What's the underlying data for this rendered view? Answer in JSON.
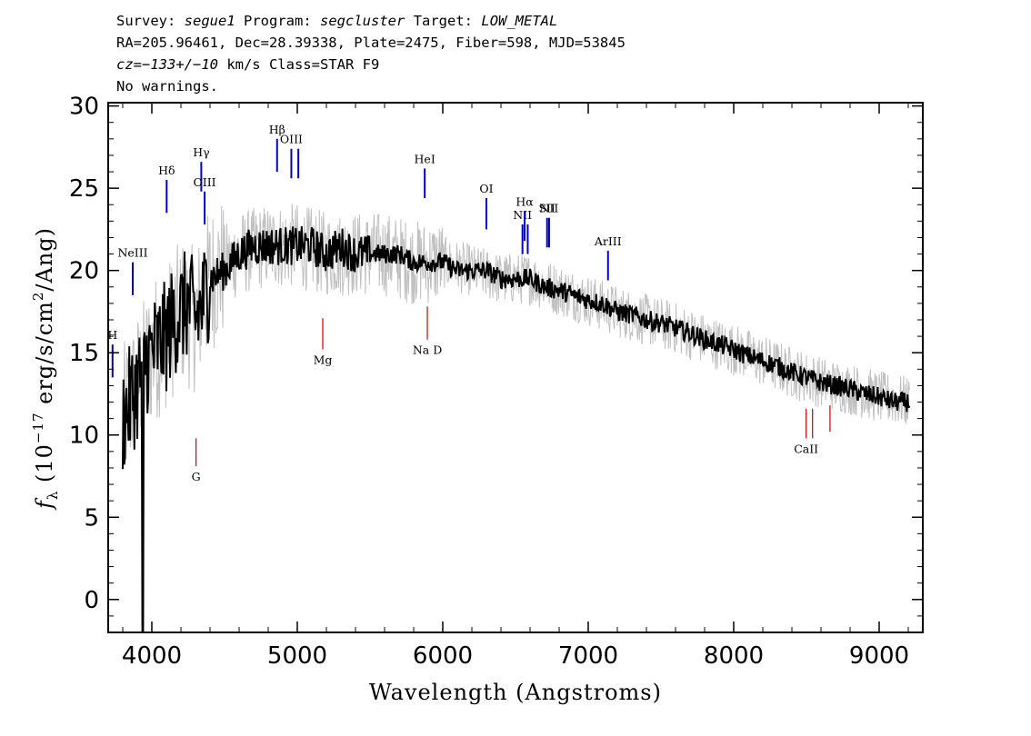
{
  "header": {
    "line1": {
      "survey_label": "Survey:",
      "survey": "segue1",
      "program_label": "Program:",
      "program": "segcluster",
      "target_label": "Target:",
      "target": "LOW_METAL"
    },
    "line2": "RA=205.96461, Dec=28.39338, Plate=2475, Fiber=598, MJD=53845",
    "line3": {
      "cz": "cz=−133+/−10",
      "rest": " km/s Class=STAR F9"
    },
    "line4": "No warnings."
  },
  "chart_data": {
    "type": "line",
    "xlabel": "Wavelength (Angstroms)",
    "ylabel": "f_λ (10^-17 erg/s/cm^2/Ang)",
    "xlim": [
      3700,
      9300
    ],
    "ylim": [
      -2,
      30.2
    ],
    "x_ticks": [
      4000,
      5000,
      6000,
      7000,
      8000,
      9000
    ],
    "y_ticks": [
      0,
      5,
      10,
      15,
      20,
      25,
      30
    ],
    "series": [
      {
        "color": "#000000",
        "x": [
          3800,
          3850,
          3900,
          3950,
          4000,
          4050,
          4100,
          4150,
          4200,
          4250,
          4300,
          4350,
          4400,
          4500,
          4600,
          4700,
          4800,
          4900,
          5000,
          5100,
          5200,
          5300,
          5400,
          5500,
          5600,
          5700,
          5800,
          5900,
          6000,
          6100,
          6200,
          6300,
          6400,
          6500,
          6600,
          6700,
          6800,
          6900,
          7000,
          7100,
          7200,
          7300,
          7400,
          7500,
          7600,
          7700,
          7800,
          7900,
          8000,
          8100,
          8200,
          8300,
          8400,
          8500,
          8600,
          8700,
          8800,
          8900,
          9000,
          9100,
          9200
        ],
        "y": [
          11,
          12,
          13,
          14.5,
          15,
          15.5,
          16,
          17,
          17.5,
          18,
          17,
          18,
          19.5,
          20,
          21,
          21.5,
          21.5,
          21.5,
          21.5,
          21.5,
          21,
          21.5,
          21,
          21,
          21,
          21,
          20.5,
          20.5,
          20.5,
          20,
          20,
          20,
          19.5,
          19.5,
          19.5,
          19,
          18.8,
          18.5,
          18.2,
          18,
          17.5,
          17.3,
          17,
          16.8,
          16.5,
          16.2,
          15.8,
          15.5,
          15.2,
          14.8,
          14.5,
          14.2,
          13.8,
          13.5,
          13.2,
          13,
          12.8,
          12.5,
          12.3,
          12.0,
          12.0
        ]
      },
      {
        "color": "#c0c0c0",
        "x": [
          3800,
          3900,
          4000,
          4100,
          4200,
          4300,
          4400,
          4600,
          4800,
          5000,
          5200,
          5400,
          5600,
          5800,
          6000,
          6200,
          6400,
          6600,
          6800,
          7000,
          7200,
          7400,
          7600,
          7800,
          8000,
          8200,
          8400,
          8600,
          8800,
          9000,
          9200
        ],
        "y": [
          11,
          13,
          15,
          16,
          17.5,
          17,
          19.5,
          21,
          21.5,
          21.5,
          21,
          21,
          21,
          20.5,
          20.5,
          20,
          19.5,
          19.5,
          18.8,
          18.2,
          17.5,
          17,
          16.5,
          15.8,
          15.2,
          14.5,
          13.8,
          13.2,
          12.8,
          12.3,
          12.0
        ]
      }
    ],
    "emission_lines": [
      {
        "label": "H",
        "x": 3730,
        "y_bottom": 13.5,
        "y_top": 15.5
      },
      {
        "label": "NeIII",
        "x": 3869,
        "y_bottom": 18.5,
        "y_top": 20.5
      },
      {
        "label": "Hδ",
        "x": 4102,
        "y_bottom": 23.5,
        "y_top": 25.5
      },
      {
        "label": "Hγ",
        "x": 4340,
        "y_bottom": 24.8,
        "y_top": 26.6
      },
      {
        "label": "OIII",
        "x": 4363,
        "y_bottom": 22.8,
        "y_top": 24.8
      },
      {
        "label": "Hβ",
        "x": 4861,
        "y_bottom": 26.0,
        "y_top": 28.0
      },
      {
        "label": "OIII",
        "x": 4959,
        "y_bottom": 25.6,
        "y_top": 27.4
      },
      {
        "label": "",
        "x": 5007,
        "y_bottom": 25.6,
        "y_top": 27.4
      },
      {
        "label": "HeI",
        "x": 5876,
        "y_bottom": 24.4,
        "y_top": 26.2
      },
      {
        "label": "OI",
        "x": 6300,
        "y_bottom": 22.5,
        "y_top": 24.4
      },
      {
        "label": "NII",
        "x": 6548,
        "y_bottom": 21.0,
        "y_top": 22.8
      },
      {
        "label": "Hα",
        "x": 6563,
        "y_bottom": 21.8,
        "y_top": 23.6
      },
      {
        "label": "",
        "x": 6584,
        "y_bottom": 21.0,
        "y_top": 22.8
      },
      {
        "label": "SII",
        "x": 6717,
        "y_bottom": 21.4,
        "y_top": 23.2
      },
      {
        "label": "NII",
        "x": 6731,
        "y_bottom": 21.4,
        "y_top": 23.2
      },
      {
        "label": "ArIII",
        "x": 7136,
        "y_bottom": 19.4,
        "y_top": 21.2
      }
    ],
    "absorption_lines": [
      {
        "label": "Mg",
        "x": 5175,
        "y_bottom": 15.2,
        "y_top": 17.1
      },
      {
        "label": "Na D",
        "x": 5894,
        "y_bottom": 15.8,
        "y_top": 17.8
      },
      {
        "label": "G",
        "x": 4304,
        "y_bottom": 8.1,
        "y_top": 9.8
      },
      {
        "label": "CaII",
        "x": 8498,
        "y_bottom": 9.8,
        "y_top": 11.6
      },
      {
        "label": "",
        "x": 8542,
        "y_bottom": 9.8,
        "y_top": 11.6
      },
      {
        "label": "",
        "x": 8662,
        "y_bottom": 10.2,
        "y_top": 11.8
      }
    ],
    "emission_color": "#0000cc",
    "absorption_color": "#cc0000"
  }
}
